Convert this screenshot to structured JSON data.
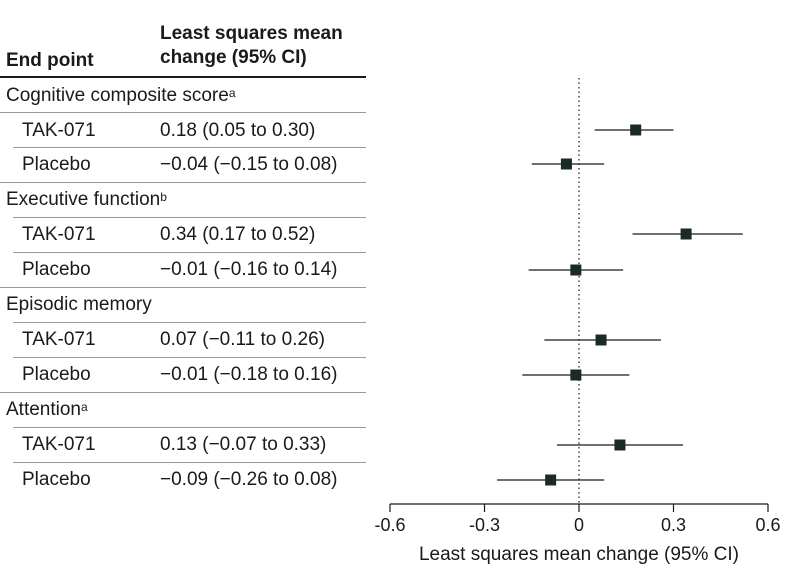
{
  "header": {
    "endpoint": "End point",
    "lsm_line1": "Least squares mean",
    "lsm_line2": "change (95% CI)"
  },
  "groups": [
    {
      "label": "Cognitive composite score",
      "sup": "a",
      "arms": [
        {
          "arm": "TAK-071",
          "ci_text": "0.18 (0.05 to 0.30)"
        },
        {
          "arm": "Placebo",
          "ci_text": "−0.04 (−0.15 to 0.08)"
        }
      ]
    },
    {
      "label": "Executive function",
      "sup": "b",
      "arms": [
        {
          "arm": "TAK-071",
          "ci_text": "0.34 (0.17 to 0.52)"
        },
        {
          "arm": "Placebo",
          "ci_text": "−0.01 (−0.16 to 0.14)"
        }
      ]
    },
    {
      "label": "Episodic memory",
      "sup": "",
      "arms": [
        {
          "arm": "TAK-071",
          "ci_text": "0.07 (−0.11 to 0.26)"
        },
        {
          "arm": "Placebo",
          "ci_text": "−0.01 (−0.18 to 0.16)"
        }
      ]
    },
    {
      "label": "Attention",
      "sup": "a",
      "arms": [
        {
          "arm": "TAK-071",
          "ci_text": "0.13 (−0.07 to 0.33)"
        },
        {
          "arm": "Placebo",
          "ci_text": "−0.09 (−0.26 to 0.08)"
        }
      ]
    }
  ],
  "chart_data": {
    "type": "forest",
    "xlabel": "Least squares mean change (95% CI)",
    "xlim": [
      -0.6,
      0.6
    ],
    "xticks": [
      -0.6,
      -0.3,
      0,
      0.3,
      0.6
    ],
    "xtick_labels": [
      "-0.6",
      "-0.3",
      "0",
      "0.3",
      "0.6"
    ],
    "reference_line": 0,
    "rows": [
      {
        "group": "Cognitive composite score",
        "arm": "TAK-071",
        "estimate": 0.18,
        "lower": 0.05,
        "upper": 0.3
      },
      {
        "group": "Cognitive composite score",
        "arm": "Placebo",
        "estimate": -0.04,
        "lower": -0.15,
        "upper": 0.08
      },
      {
        "group": "Executive function",
        "arm": "TAK-071",
        "estimate": 0.34,
        "lower": 0.17,
        "upper": 0.52
      },
      {
        "group": "Executive function",
        "arm": "Placebo",
        "estimate": -0.01,
        "lower": -0.16,
        "upper": 0.14
      },
      {
        "group": "Episodic memory",
        "arm": "TAK-071",
        "estimate": 0.07,
        "lower": -0.11,
        "upper": 0.26
      },
      {
        "group": "Episodic memory",
        "arm": "Placebo",
        "estimate": -0.01,
        "lower": -0.18,
        "upper": 0.16
      },
      {
        "group": "Attention",
        "arm": "TAK-071",
        "estimate": 0.13,
        "lower": -0.07,
        "upper": 0.33
      },
      {
        "group": "Attention",
        "arm": "Placebo",
        "estimate": -0.09,
        "lower": -0.26,
        "upper": 0.08
      }
    ],
    "marker_color": "#1a2a26"
  }
}
